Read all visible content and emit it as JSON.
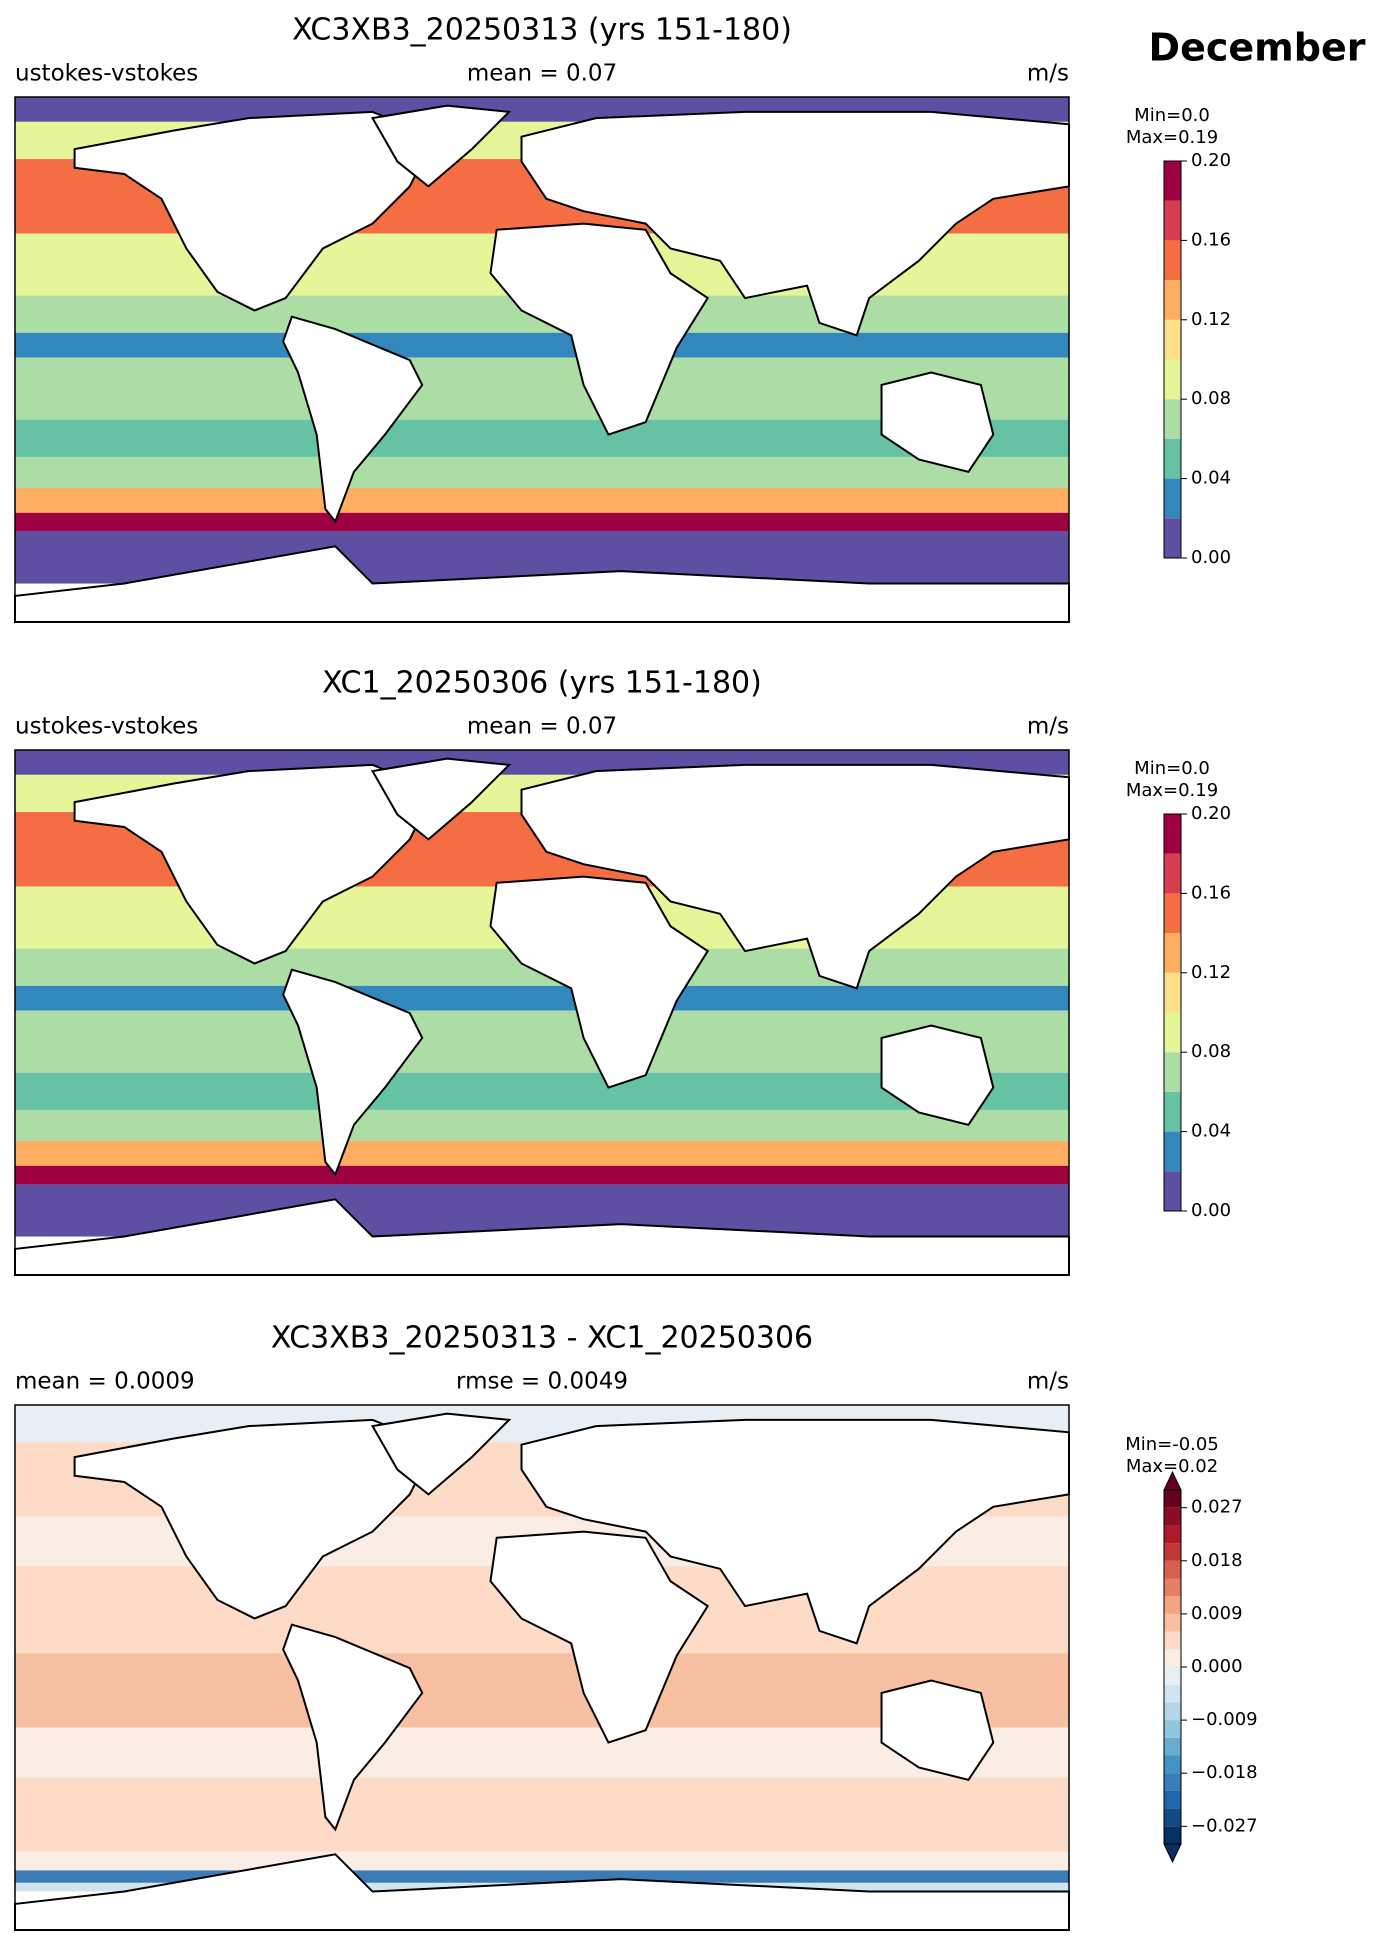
{
  "title": "December",
  "chart_data": [
    {
      "type": "map",
      "title": "XC3XB3_20250313 (yrs 151-180)",
      "left_label": "ustokes-vstokes",
      "center_label": "mean = 0.07",
      "right_label": "m/s",
      "colorbar": {
        "min_label": "Min=0.0",
        "max_label": "Max=0.19",
        "extend": "neither",
        "bins": [
          0,
          0.02,
          0.04,
          0.06,
          0.08,
          0.1,
          0.12,
          0.14,
          0.16,
          0.18,
          0.2
        ],
        "colors": [
          "#5e4fa2",
          "#3288bd",
          "#66c2a5",
          "#abdda4",
          "#e6f598",
          "#fee08b",
          "#fdae61",
          "#f46d43",
          "#d53e4f",
          "#9e0142"
        ],
        "ticks": [
          {
            "value": 0,
            "label": "0.00"
          },
          {
            "value": 0.04,
            "label": "0.04"
          },
          {
            "value": 0.08,
            "label": "0.08"
          },
          {
            "value": 0.12,
            "label": "0.12"
          },
          {
            "value": 0.16,
            "label": "0.16"
          },
          {
            "value": 0.2,
            "label": "0.20"
          }
        ]
      }
    },
    {
      "type": "map",
      "title": "XC1_20250306 (yrs 151-180)",
      "left_label": "ustokes-vstokes",
      "center_label": "mean = 0.07",
      "right_label": "m/s",
      "colorbar": {
        "min_label": "Min=0.0",
        "max_label": "Max=0.19",
        "extend": "neither",
        "bins": [
          0,
          0.02,
          0.04,
          0.06,
          0.08,
          0.1,
          0.12,
          0.14,
          0.16,
          0.18,
          0.2
        ],
        "colors": [
          "#5e4fa2",
          "#3288bd",
          "#66c2a5",
          "#abdda4",
          "#e6f598",
          "#fee08b",
          "#fdae61",
          "#f46d43",
          "#d53e4f",
          "#9e0142"
        ],
        "ticks": [
          {
            "value": 0,
            "label": "0.00"
          },
          {
            "value": 0.04,
            "label": "0.04"
          },
          {
            "value": 0.08,
            "label": "0.08"
          },
          {
            "value": 0.12,
            "label": "0.12"
          },
          {
            "value": 0.16,
            "label": "0.16"
          },
          {
            "value": 0.2,
            "label": "0.20"
          }
        ]
      }
    },
    {
      "type": "map",
      "title": "XC3XB3_20250313 - XC1_20250306",
      "left_label": "mean = 0.0009",
      "center_label": "rmse = 0.0049",
      "right_label": "m/s",
      "colorbar": {
        "min_label": "Min=-0.05",
        "max_label": "Max=0.02",
        "extend": "both",
        "bins": [
          -0.03,
          -0.027,
          -0.024,
          -0.021,
          -0.018,
          -0.015,
          -0.012,
          -0.009,
          -0.006,
          -0.003,
          0,
          0.003,
          0.006,
          0.009,
          0.012,
          0.015,
          0.018,
          0.021,
          0.024,
          0.027,
          0.03
        ],
        "colors": [
          "#053061",
          "#134b87",
          "#2166ac",
          "#3a7bb8",
          "#4393c3",
          "#6aacd0",
          "#92c5de",
          "#b4d6e8",
          "#d1e5f0",
          "#e7eff4",
          "#f9ede6",
          "#fddbc7",
          "#f8c0a3",
          "#f4a582",
          "#e48066",
          "#d6604d",
          "#c13639",
          "#b2182b",
          "#8a0c25",
          "#67001f"
        ],
        "ticks": [
          {
            "value": -0.027,
            "label": "−0.027"
          },
          {
            "value": -0.018,
            "label": "−0.018"
          },
          {
            "value": -0.009,
            "label": "−0.009"
          },
          {
            "value": 0,
            "label": "0.000"
          },
          {
            "value": 0.009,
            "label": "0.009"
          },
          {
            "value": 0.018,
            "label": "0.018"
          },
          {
            "value": 0.027,
            "label": "0.027"
          }
        ]
      }
    }
  ]
}
